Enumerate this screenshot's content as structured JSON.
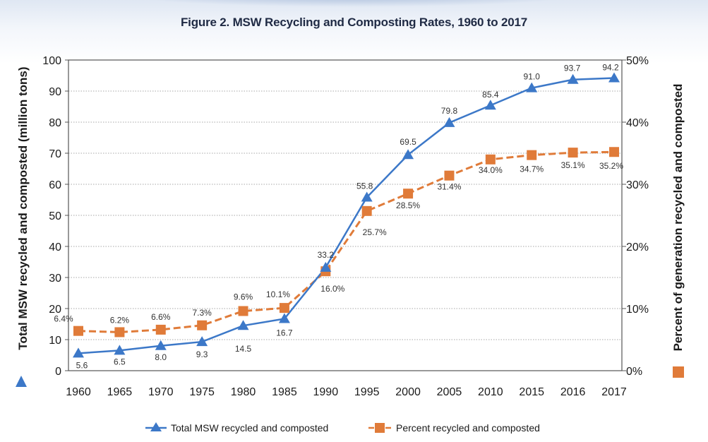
{
  "chart_data": {
    "type": "line",
    "title": "Figure 2. MSW Recycling and Composting Rates, 1960 to 2017",
    "ylabel_left": "Total MSW recycled and composted (million tons)",
    "ylabel_right": "Percent of generation recycled and composted",
    "categories": [
      "1960",
      "1965",
      "1970",
      "1975",
      "1980",
      "1985",
      "1990",
      "1995",
      "2000",
      "2005",
      "2010",
      "2015",
      "2016",
      "2017"
    ],
    "y_left_ticks": [
      "0",
      "10",
      "20",
      "30",
      "40",
      "50",
      "60",
      "70",
      "80",
      "90",
      "100"
    ],
    "y_right_ticks": [
      "0%",
      "10%",
      "20%",
      "30%",
      "40%",
      "50%"
    ],
    "ylim_left": [
      0,
      100
    ],
    "ylim_right": [
      0,
      50
    ],
    "series": [
      {
        "name": "Total MSW recycled and composted",
        "axis": "left",
        "color": "#3c78c8",
        "marker": "triangle",
        "values": [
          5.6,
          6.5,
          8.0,
          9.3,
          14.5,
          16.7,
          33.2,
          55.8,
          69.5,
          79.8,
          85.4,
          91.0,
          93.7,
          94.2
        ],
        "labels": [
          "5.6",
          "6.5",
          "8.0",
          "9.3",
          "14.5",
          "16.7",
          "33.2",
          "55.8",
          "69.5",
          "79.8",
          "85.4",
          "91.0",
          "93.7",
          "94.2"
        ]
      },
      {
        "name": "Percent recycled and composted",
        "axis": "right",
        "color": "#e07b39",
        "marker": "square",
        "values": [
          6.4,
          6.2,
          6.6,
          7.3,
          9.6,
          10.1,
          16.0,
          25.7,
          28.5,
          31.4,
          34.0,
          34.7,
          35.1,
          35.2
        ],
        "labels": [
          "6.4%",
          "6.2%",
          "6.6%",
          "7.3%",
          "9.6%",
          "10.1%",
          "16.0%",
          "25.7%",
          "28.5%",
          "31.4%",
          "34.0%",
          "34.7%",
          "35.1%",
          "35.2%"
        ]
      }
    ],
    "grid": true,
    "legend_position": "bottom"
  }
}
